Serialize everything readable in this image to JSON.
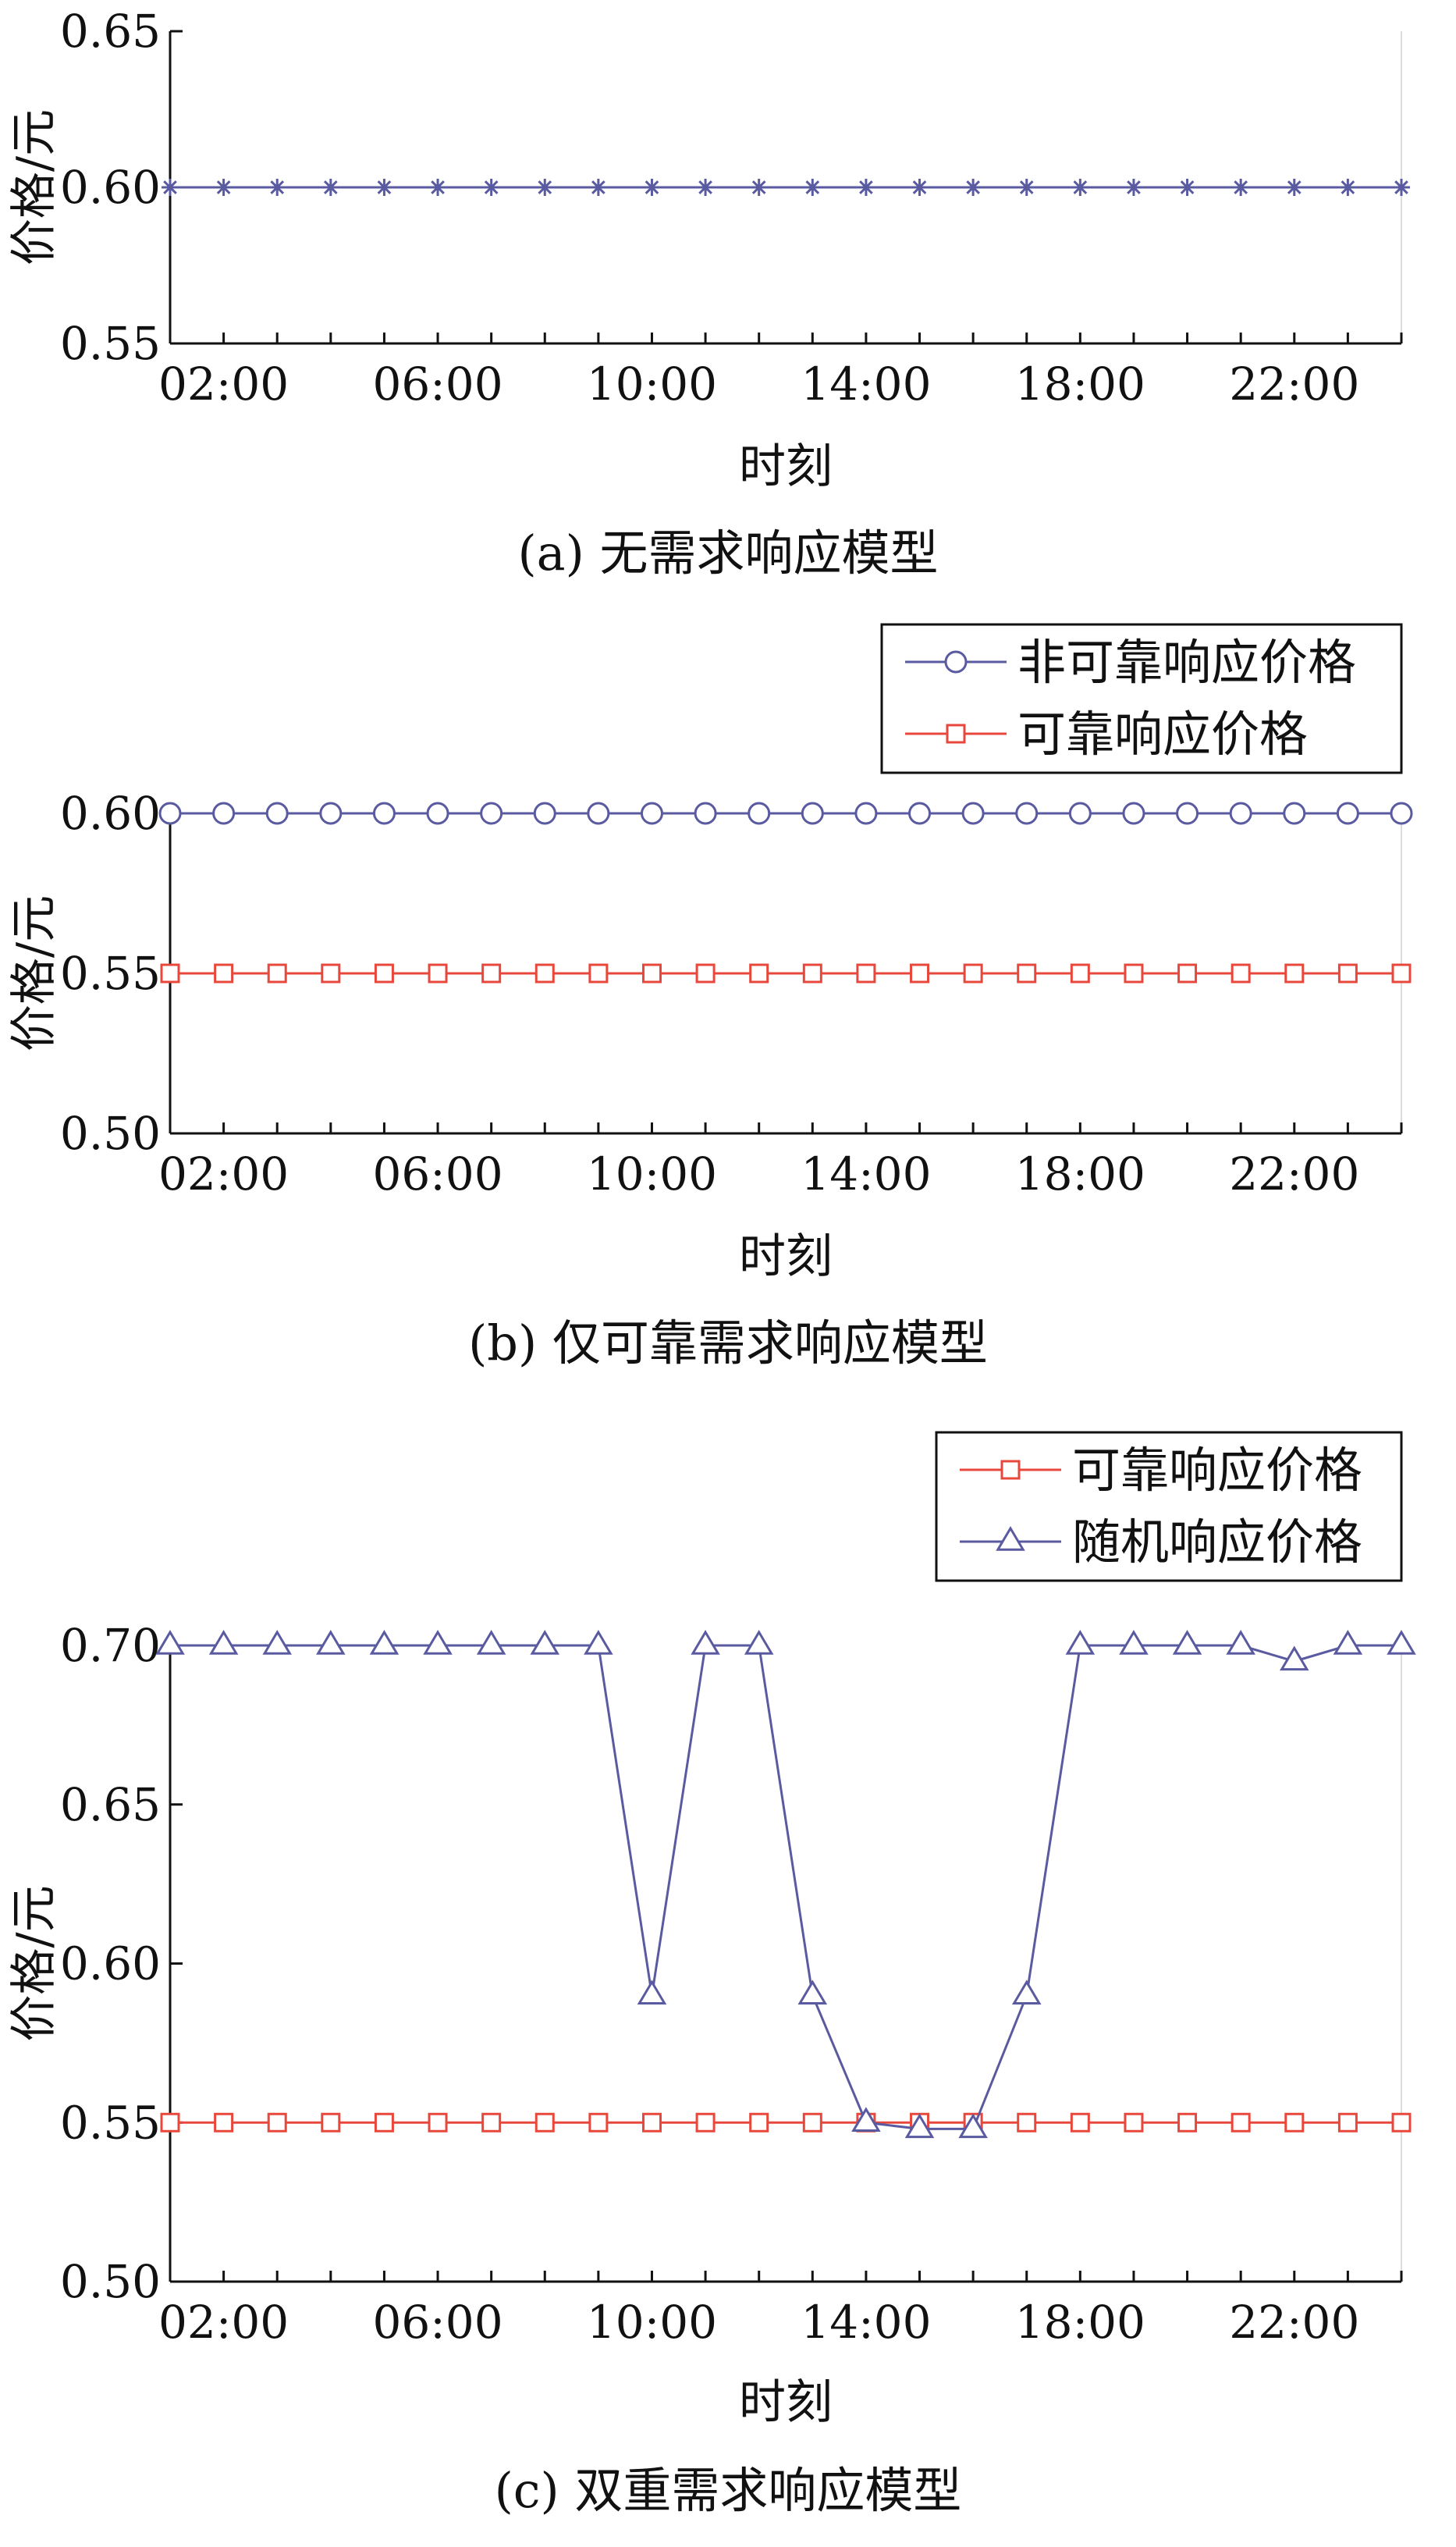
{
  "chart_data": [
    {
      "id": "a",
      "type": "line",
      "caption": "(a)  无需求响应模型",
      "xlabel": "时刻",
      "ylabel": "价格/元",
      "ylim": [
        0.55,
        0.65
      ],
      "yticks": [
        0.55,
        0.6,
        0.65
      ],
      "ytick_labels": [
        "0.55",
        "0.60",
        "0.65"
      ],
      "xlim": [
        1,
        24
      ],
      "xtick_labels": [
        "02:00",
        "06:00",
        "10:00",
        "14:00",
        "18:00",
        "22:00"
      ],
      "x": [
        1,
        2,
        3,
        4,
        5,
        6,
        7,
        8,
        9,
        10,
        11,
        12,
        13,
        14,
        15,
        16,
        17,
        18,
        19,
        20,
        21,
        22,
        23,
        24
      ],
      "legend_placement": "none",
      "series": [
        {
          "color": "#5a5aa0",
          "marker": "star",
          "values": [
            0.6,
            0.6,
            0.6,
            0.6,
            0.6,
            0.6,
            0.6,
            0.6,
            0.6,
            0.6,
            0.6,
            0.6,
            0.6,
            0.6,
            0.6,
            0.6,
            0.6,
            0.6,
            0.6,
            0.6,
            0.6,
            0.6,
            0.6,
            0.6
          ]
        }
      ]
    },
    {
      "id": "b",
      "type": "line",
      "caption": "(b)  仅可靠需求响应模型",
      "xlabel": "时刻",
      "ylabel": "价格/元",
      "ylim": [
        0.5,
        0.6
      ],
      "yticks": [
        0.5,
        0.55,
        0.6
      ],
      "ytick_labels": [
        "0.50",
        "0.55",
        "0.60"
      ],
      "xlim": [
        1,
        24
      ],
      "xtick_labels": [
        "02:00",
        "06:00",
        "10:00",
        "14:00",
        "18:00",
        "22:00"
      ],
      "x": [
        1,
        2,
        3,
        4,
        5,
        6,
        7,
        8,
        9,
        10,
        11,
        12,
        13,
        14,
        15,
        16,
        17,
        18,
        19,
        20,
        21,
        22,
        23,
        24
      ],
      "legend_placement": "top-right outside",
      "series": [
        {
          "name": "非可靠响应价格",
          "color": "#5a5aa0",
          "marker": "circle",
          "values": [
            0.6,
            0.6,
            0.6,
            0.6,
            0.6,
            0.6,
            0.6,
            0.6,
            0.6,
            0.6,
            0.6,
            0.6,
            0.6,
            0.6,
            0.6,
            0.6,
            0.6,
            0.6,
            0.6,
            0.6,
            0.6,
            0.6,
            0.6,
            0.6
          ]
        },
        {
          "name": "可靠响应价格",
          "color": "#e8483c",
          "marker": "square",
          "values": [
            0.55,
            0.55,
            0.55,
            0.55,
            0.55,
            0.55,
            0.55,
            0.55,
            0.55,
            0.55,
            0.55,
            0.55,
            0.55,
            0.55,
            0.55,
            0.55,
            0.55,
            0.55,
            0.55,
            0.55,
            0.55,
            0.55,
            0.55,
            0.55
          ]
        }
      ]
    },
    {
      "id": "c",
      "type": "line",
      "caption": "(c)  双重需求响应模型",
      "xlabel": "时刻",
      "ylabel": "价格/元",
      "ylim": [
        0.5,
        0.7
      ],
      "yticks": [
        0.5,
        0.55,
        0.6,
        0.65,
        0.7
      ],
      "ytick_labels": [
        "0.50",
        "0.55",
        "0.60",
        "0.65",
        "0.70"
      ],
      "xlim": [
        1,
        24
      ],
      "xtick_labels": [
        "02:00",
        "06:00",
        "10:00",
        "14:00",
        "18:00",
        "22:00"
      ],
      "x": [
        1,
        2,
        3,
        4,
        5,
        6,
        7,
        8,
        9,
        10,
        11,
        12,
        13,
        14,
        15,
        16,
        17,
        18,
        19,
        20,
        21,
        22,
        23,
        24
      ],
      "legend_placement": "top-right outside",
      "series": [
        {
          "name": "可靠响应价格",
          "color": "#e8483c",
          "marker": "square",
          "values": [
            0.55,
            0.55,
            0.55,
            0.55,
            0.55,
            0.55,
            0.55,
            0.55,
            0.55,
            0.55,
            0.55,
            0.55,
            0.55,
            0.55,
            0.55,
            0.55,
            0.55,
            0.55,
            0.55,
            0.55,
            0.55,
            0.55,
            0.55,
            0.55
          ]
        },
        {
          "name": "随机响应价格",
          "color": "#5a5aa0",
          "marker": "triangle",
          "values": [
            0.7,
            0.7,
            0.7,
            0.7,
            0.7,
            0.7,
            0.7,
            0.7,
            0.7,
            0.59,
            0.7,
            0.7,
            0.59,
            0.55,
            0.548,
            0.548,
            0.59,
            0.7,
            0.7,
            0.7,
            0.7,
            0.695,
            0.7,
            0.7
          ]
        }
      ]
    }
  ]
}
